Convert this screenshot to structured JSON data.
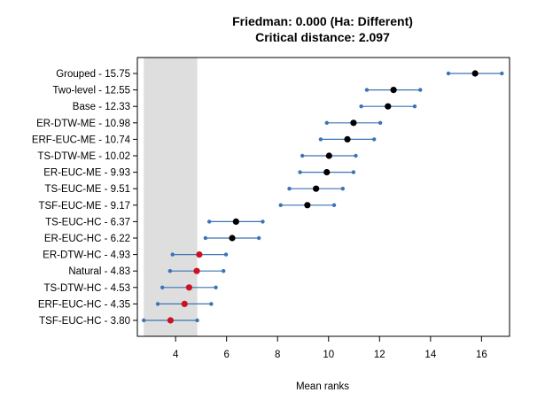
{
  "chart_data": {
    "type": "scatter",
    "title_lines": [
      "Friedman: 0.000 (Ha: Different)",
      "Critical distance: 2.097"
    ],
    "xlabel": "Mean ranks",
    "ylabel": "",
    "xlim": [
      2.5,
      17.1
    ],
    "xticks": [
      4,
      6,
      8,
      10,
      12,
      14,
      16
    ],
    "critical_distance": 2.097,
    "shaded_region": [
      2.75,
      4.85
    ],
    "grid": false,
    "legend": "none",
    "colors": {
      "interval": "#3a74b5",
      "point_significant": "#000000",
      "point_best_group": "#cc1122",
      "shade": "#dedede"
    },
    "methods": [
      {
        "label": "Grouped - 15.75",
        "rank": 15.75,
        "best_group": false
      },
      {
        "label": "Two-level - 12.55",
        "rank": 12.55,
        "best_group": false
      },
      {
        "label": "Base - 12.33",
        "rank": 12.33,
        "best_group": false
      },
      {
        "label": "ER-DTW-ME - 10.98",
        "rank": 10.98,
        "best_group": false
      },
      {
        "label": "ERF-EUC-ME - 10.74",
        "rank": 10.74,
        "best_group": false
      },
      {
        "label": "TS-DTW-ME - 10.02",
        "rank": 10.02,
        "best_group": false
      },
      {
        "label": "ER-EUC-ME - 9.93",
        "rank": 9.93,
        "best_group": false
      },
      {
        "label": "TS-EUC-ME - 9.51",
        "rank": 9.51,
        "best_group": false
      },
      {
        "label": "TSF-EUC-ME - 9.17",
        "rank": 9.17,
        "best_group": false
      },
      {
        "label": "TS-EUC-HC - 6.37",
        "rank": 6.37,
        "best_group": false
      },
      {
        "label": "ER-EUC-HC - 6.22",
        "rank": 6.22,
        "best_group": false
      },
      {
        "label": "ER-DTW-HC - 4.93",
        "rank": 4.93,
        "best_group": true
      },
      {
        "label": "Natural - 4.83",
        "rank": 4.83,
        "best_group": true
      },
      {
        "label": "TS-DTW-HC - 4.53",
        "rank": 4.53,
        "best_group": true
      },
      {
        "label": "ERF-EUC-HC - 4.35",
        "rank": 4.35,
        "best_group": true
      },
      {
        "label": "TSF-EUC-HC - 3.80",
        "rank": 3.8,
        "best_group": true
      }
    ]
  }
}
